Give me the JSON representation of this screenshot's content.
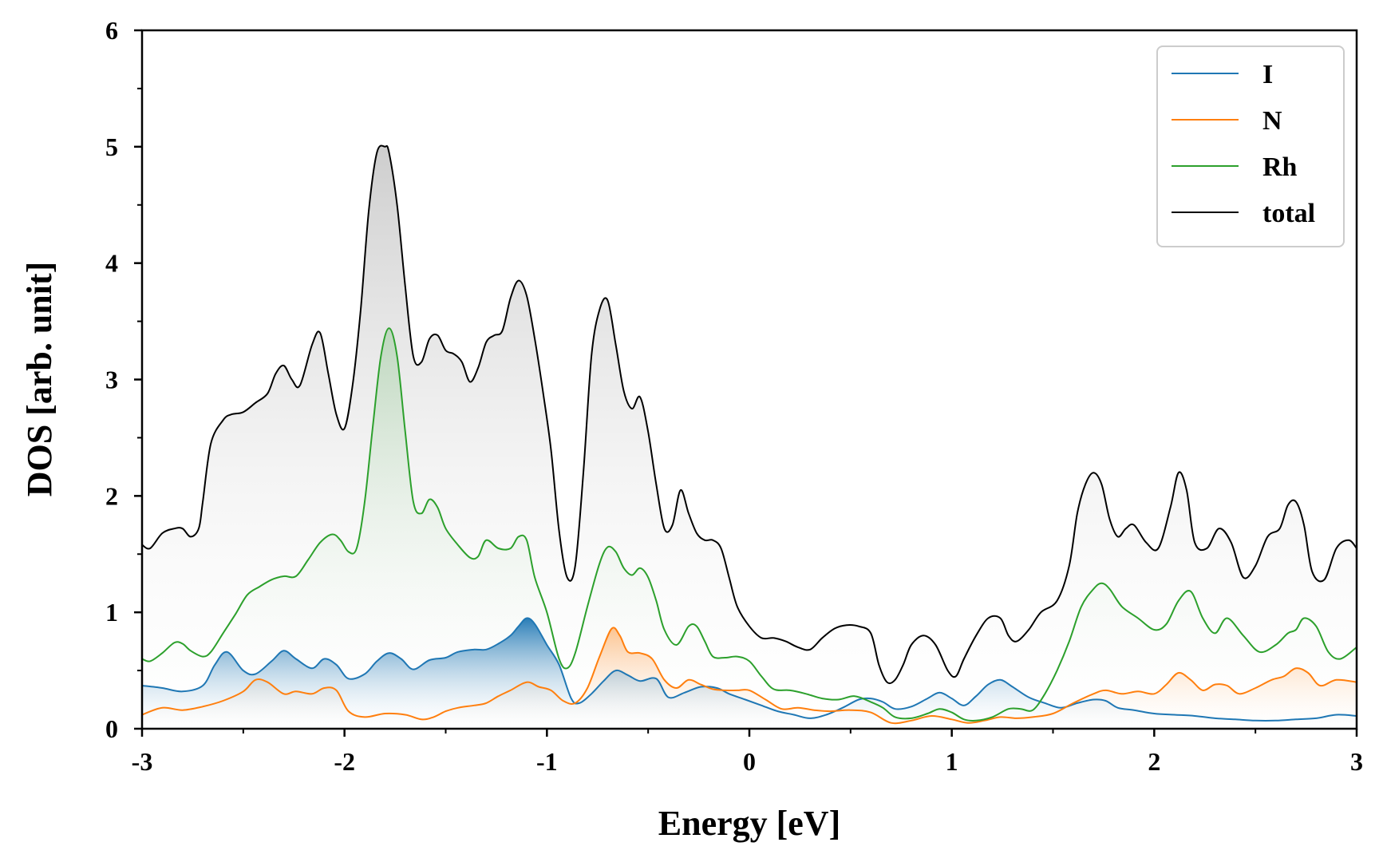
{
  "chart_data": {
    "type": "area",
    "title": "",
    "xlabel": "Energy [eV]",
    "ylabel": "DOS [arb. unit]",
    "xlim": [
      -3,
      3
    ],
    "ylim": [
      0,
      6
    ],
    "x_ticks": [
      -3,
      -2,
      -1,
      0,
      1,
      2,
      3
    ],
    "x_tick_labels": [
      "-3",
      "-2",
      "-1",
      "0",
      "1",
      "2",
      "3"
    ],
    "y_ticks": [
      0,
      1,
      2,
      3,
      4,
      5,
      6
    ],
    "y_tick_labels": [
      "0",
      "1",
      "2",
      "3",
      "4",
      "5",
      "6"
    ],
    "grid": false,
    "legend_position": "top-right",
    "series": [
      {
        "name": "I",
        "color": "#1f77b4",
        "x": [
          -3.0,
          -2.9,
          -2.8,
          -2.7,
          -2.64,
          -2.58,
          -2.5,
          -2.44,
          -2.36,
          -2.3,
          -2.24,
          -2.16,
          -2.1,
          -2.04,
          -1.98,
          -1.9,
          -1.84,
          -1.78,
          -1.72,
          -1.66,
          -1.58,
          -1.5,
          -1.44,
          -1.36,
          -1.3,
          -1.24,
          -1.18,
          -1.14,
          -1.1,
          -1.06,
          -1.0,
          -0.94,
          -0.88,
          -0.84,
          -0.78,
          -0.72,
          -0.66,
          -0.6,
          -0.54,
          -0.46,
          -0.4,
          -0.32,
          -0.24,
          -0.16,
          -0.1,
          -0.02,
          0.06,
          0.14,
          0.22,
          0.3,
          0.38,
          0.46,
          0.54,
          0.6,
          0.66,
          0.72,
          0.8,
          0.88,
          0.94,
          1.0,
          1.06,
          1.12,
          1.18,
          1.24,
          1.3,
          1.38,
          1.46,
          1.54,
          1.62,
          1.7,
          1.76,
          1.82,
          1.9,
          2.0,
          2.1,
          2.2,
          2.3,
          2.4,
          2.5,
          2.6,
          2.7,
          2.8,
          2.9,
          3.0
        ],
        "values": [
          0.37,
          0.35,
          0.32,
          0.37,
          0.55,
          0.66,
          0.5,
          0.47,
          0.58,
          0.67,
          0.6,
          0.52,
          0.6,
          0.55,
          0.43,
          0.47,
          0.58,
          0.65,
          0.6,
          0.51,
          0.59,
          0.61,
          0.66,
          0.68,
          0.68,
          0.73,
          0.8,
          0.88,
          0.95,
          0.9,
          0.72,
          0.55,
          0.26,
          0.22,
          0.3,
          0.41,
          0.5,
          0.46,
          0.41,
          0.43,
          0.27,
          0.31,
          0.36,
          0.35,
          0.3,
          0.25,
          0.2,
          0.15,
          0.12,
          0.09,
          0.12,
          0.18,
          0.25,
          0.26,
          0.23,
          0.17,
          0.19,
          0.26,
          0.31,
          0.26,
          0.2,
          0.28,
          0.38,
          0.42,
          0.36,
          0.27,
          0.22,
          0.18,
          0.22,
          0.25,
          0.24,
          0.18,
          0.16,
          0.13,
          0.12,
          0.11,
          0.09,
          0.08,
          0.07,
          0.07,
          0.08,
          0.09,
          0.12,
          0.11
        ]
      },
      {
        "name": "N",
        "color": "#ff7f0e",
        "x": [
          -3.0,
          -2.9,
          -2.8,
          -2.7,
          -2.6,
          -2.5,
          -2.44,
          -2.38,
          -2.3,
          -2.24,
          -2.16,
          -2.1,
          -2.04,
          -1.98,
          -1.9,
          -1.8,
          -1.7,
          -1.62,
          -1.56,
          -1.5,
          -1.44,
          -1.36,
          -1.3,
          -1.24,
          -1.18,
          -1.1,
          -1.04,
          -0.98,
          -0.92,
          -0.86,
          -0.8,
          -0.74,
          -0.68,
          -0.64,
          -0.6,
          -0.54,
          -0.48,
          -0.42,
          -0.36,
          -0.3,
          -0.24,
          -0.18,
          -0.12,
          -0.06,
          0.0,
          0.08,
          0.16,
          0.24,
          0.32,
          0.4,
          0.5,
          0.6,
          0.7,
          0.8,
          0.9,
          1.0,
          1.08,
          1.16,
          1.24,
          1.32,
          1.4,
          1.5,
          1.6,
          1.7,
          1.76,
          1.84,
          1.92,
          2.0,
          2.06,
          2.12,
          2.18,
          2.24,
          2.3,
          2.36,
          2.42,
          2.5,
          2.58,
          2.64,
          2.7,
          2.76,
          2.82,
          2.9,
          3.0
        ],
        "values": [
          0.12,
          0.18,
          0.16,
          0.19,
          0.24,
          0.32,
          0.42,
          0.4,
          0.3,
          0.32,
          0.3,
          0.35,
          0.33,
          0.15,
          0.1,
          0.13,
          0.12,
          0.08,
          0.1,
          0.15,
          0.18,
          0.2,
          0.22,
          0.28,
          0.33,
          0.4,
          0.36,
          0.33,
          0.24,
          0.22,
          0.35,
          0.62,
          0.86,
          0.8,
          0.66,
          0.65,
          0.6,
          0.42,
          0.35,
          0.42,
          0.38,
          0.34,
          0.33,
          0.33,
          0.33,
          0.25,
          0.17,
          0.18,
          0.16,
          0.15,
          0.16,
          0.14,
          0.05,
          0.07,
          0.11,
          0.08,
          0.05,
          0.07,
          0.1,
          0.09,
          0.1,
          0.13,
          0.22,
          0.3,
          0.33,
          0.3,
          0.32,
          0.3,
          0.38,
          0.48,
          0.42,
          0.33,
          0.38,
          0.37,
          0.3,
          0.35,
          0.42,
          0.45,
          0.52,
          0.48,
          0.37,
          0.42,
          0.4
        ]
      },
      {
        "name": "Rh",
        "color": "#2ca02c",
        "x": [
          -3.0,
          -2.96,
          -2.9,
          -2.84,
          -2.8,
          -2.76,
          -2.7,
          -2.66,
          -2.6,
          -2.54,
          -2.48,
          -2.42,
          -2.36,
          -2.3,
          -2.24,
          -2.18,
          -2.12,
          -2.06,
          -2.02,
          -1.98,
          -1.94,
          -1.9,
          -1.86,
          -1.82,
          -1.78,
          -1.74,
          -1.7,
          -1.66,
          -1.62,
          -1.58,
          -1.54,
          -1.5,
          -1.44,
          -1.38,
          -1.34,
          -1.3,
          -1.24,
          -1.18,
          -1.14,
          -1.1,
          -1.06,
          -1.0,
          -0.94,
          -0.9,
          -0.86,
          -0.8,
          -0.74,
          -0.7,
          -0.66,
          -0.62,
          -0.58,
          -0.54,
          -0.5,
          -0.46,
          -0.42,
          -0.36,
          -0.3,
          -0.26,
          -0.22,
          -0.18,
          -0.12,
          -0.06,
          0.0,
          0.06,
          0.12,
          0.2,
          0.28,
          0.36,
          0.44,
          0.52,
          0.6,
          0.66,
          0.72,
          0.8,
          0.88,
          0.94,
          1.0,
          1.06,
          1.12,
          1.2,
          1.28,
          1.34,
          1.4,
          1.46,
          1.52,
          1.58,
          1.64,
          1.7,
          1.74,
          1.78,
          1.84,
          1.92,
          2.0,
          2.06,
          2.12,
          2.18,
          2.24,
          2.3,
          2.36,
          2.44,
          2.52,
          2.6,
          2.66,
          2.7,
          2.74,
          2.8,
          2.86,
          2.92,
          3.0
        ],
        "values": [
          0.6,
          0.58,
          0.65,
          0.74,
          0.73,
          0.67,
          0.62,
          0.66,
          0.82,
          0.98,
          1.15,
          1.22,
          1.28,
          1.31,
          1.31,
          1.45,
          1.6,
          1.67,
          1.62,
          1.52,
          1.55,
          1.95,
          2.6,
          3.2,
          3.44,
          3.2,
          2.55,
          1.95,
          1.85,
          1.97,
          1.9,
          1.72,
          1.58,
          1.47,
          1.48,
          1.62,
          1.55,
          1.55,
          1.65,
          1.62,
          1.3,
          1.0,
          0.6,
          0.52,
          0.65,
          1.05,
          1.42,
          1.56,
          1.52,
          1.38,
          1.32,
          1.38,
          1.3,
          1.1,
          0.85,
          0.72,
          0.88,
          0.88,
          0.75,
          0.62,
          0.61,
          0.62,
          0.58,
          0.45,
          0.34,
          0.33,
          0.3,
          0.26,
          0.25,
          0.28,
          0.23,
          0.18,
          0.1,
          0.09,
          0.13,
          0.17,
          0.14,
          0.08,
          0.07,
          0.1,
          0.17,
          0.17,
          0.16,
          0.3,
          0.5,
          0.75,
          1.05,
          1.2,
          1.25,
          1.2,
          1.05,
          0.95,
          0.85,
          0.9,
          1.1,
          1.18,
          0.95,
          0.82,
          0.95,
          0.8,
          0.66,
          0.72,
          0.82,
          0.85,
          0.95,
          0.88,
          0.66,
          0.6,
          0.7
        ]
      },
      {
        "name": "total",
        "color": "#000000",
        "x": [
          -3.0,
          -2.96,
          -2.9,
          -2.84,
          -2.8,
          -2.76,
          -2.72,
          -2.7,
          -2.66,
          -2.6,
          -2.56,
          -2.5,
          -2.44,
          -2.38,
          -2.34,
          -2.3,
          -2.26,
          -2.22,
          -2.16,
          -2.12,
          -2.08,
          -2.04,
          -2.0,
          -1.96,
          -1.92,
          -1.88,
          -1.84,
          -1.8,
          -1.78,
          -1.74,
          -1.7,
          -1.66,
          -1.62,
          -1.58,
          -1.54,
          -1.5,
          -1.46,
          -1.42,
          -1.38,
          -1.34,
          -1.3,
          -1.26,
          -1.22,
          -1.18,
          -1.14,
          -1.1,
          -1.06,
          -1.02,
          -0.98,
          -0.94,
          -0.9,
          -0.86,
          -0.82,
          -0.78,
          -0.74,
          -0.7,
          -0.66,
          -0.62,
          -0.58,
          -0.54,
          -0.5,
          -0.46,
          -0.42,
          -0.38,
          -0.34,
          -0.3,
          -0.26,
          -0.22,
          -0.18,
          -0.14,
          -0.1,
          -0.06,
          0.0,
          0.06,
          0.12,
          0.18,
          0.24,
          0.3,
          0.36,
          0.42,
          0.48,
          0.54,
          0.6,
          0.64,
          0.68,
          0.72,
          0.76,
          0.8,
          0.86,
          0.92,
          0.98,
          1.02,
          1.06,
          1.12,
          1.18,
          1.24,
          1.28,
          1.32,
          1.38,
          1.44,
          1.52,
          1.58,
          1.62,
          1.66,
          1.7,
          1.74,
          1.78,
          1.82,
          1.86,
          1.9,
          1.96,
          2.02,
          2.08,
          2.12,
          2.16,
          2.2,
          2.26,
          2.32,
          2.38,
          2.44,
          2.5,
          2.56,
          2.62,
          2.66,
          2.7,
          2.74,
          2.78,
          2.84,
          2.9,
          2.96,
          3.0
        ],
        "values": [
          1.58,
          1.55,
          1.68,
          1.72,
          1.72,
          1.65,
          1.72,
          1.95,
          2.45,
          2.65,
          2.7,
          2.72,
          2.8,
          2.88,
          3.05,
          3.12,
          3.0,
          2.95,
          3.3,
          3.4,
          3.05,
          2.7,
          2.58,
          2.95,
          3.6,
          4.45,
          4.95,
          5.0,
          4.95,
          4.5,
          3.8,
          3.2,
          3.15,
          3.35,
          3.38,
          3.25,
          3.22,
          3.15,
          2.98,
          3.1,
          3.32,
          3.38,
          3.42,
          3.7,
          3.85,
          3.72,
          3.35,
          2.9,
          2.4,
          1.7,
          1.3,
          1.4,
          2.2,
          3.2,
          3.6,
          3.68,
          3.3,
          2.9,
          2.75,
          2.85,
          2.55,
          2.1,
          1.72,
          1.75,
          2.05,
          1.85,
          1.68,
          1.62,
          1.62,
          1.55,
          1.3,
          1.05,
          0.88,
          0.78,
          0.78,
          0.75,
          0.7,
          0.68,
          0.78,
          0.86,
          0.89,
          0.88,
          0.82,
          0.55,
          0.4,
          0.42,
          0.55,
          0.72,
          0.8,
          0.72,
          0.5,
          0.45,
          0.6,
          0.8,
          0.95,
          0.95,
          0.8,
          0.75,
          0.85,
          1.0,
          1.1,
          1.4,
          1.85,
          2.1,
          2.2,
          2.1,
          1.8,
          1.65,
          1.72,
          1.75,
          1.6,
          1.55,
          1.9,
          2.2,
          2.05,
          1.6,
          1.55,
          1.72,
          1.6,
          1.3,
          1.4,
          1.65,
          1.72,
          1.92,
          1.95,
          1.75,
          1.35,
          1.28,
          1.55,
          1.62,
          1.55
        ]
      }
    ]
  }
}
